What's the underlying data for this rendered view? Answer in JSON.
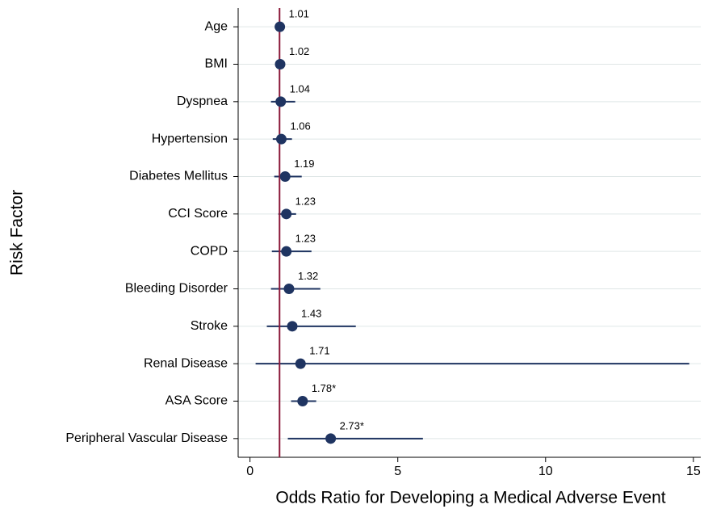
{
  "chart_data": {
    "type": "forest",
    "x_label": "Odds Ratio for Developing a Medical Adverse Event",
    "y_label": "Risk Factor",
    "categories": [
      "Age",
      "BMI",
      "Dyspnea",
      "Hypertension",
      "Diabetes Mellitus",
      "CCI Score",
      "COPD",
      "Bleeding Disorder",
      "Stroke",
      "Renal Disease",
      "ASA Score",
      "Peripheral Vascular Disease"
    ],
    "values": [
      1.01,
      1.02,
      1.04,
      1.06,
      1.19,
      1.23,
      1.23,
      1.32,
      1.43,
      1.71,
      1.78,
      2.73
    ],
    "value_labels": [
      "1.01",
      "1.02",
      "1.04",
      "1.06",
      "1.19",
      "1.23",
      "1.23",
      "1.32",
      "1.43",
      "1.71",
      "1.78*",
      "2.73*"
    ],
    "ci_low": [
      0.99,
      0.98,
      0.71,
      0.77,
      0.82,
      0.96,
      0.74,
      0.71,
      0.57,
      0.19,
      1.39,
      1.28
    ],
    "ci_high": [
      1.03,
      1.06,
      1.53,
      1.42,
      1.75,
      1.56,
      2.08,
      2.38,
      3.58,
      14.86,
      2.24,
      5.85
    ],
    "color": "#1f3461",
    "reference_line": 1,
    "reference_color": "#8b1a3a",
    "xlim": [
      -0.4,
      15.25
    ],
    "xticks": [
      0,
      5,
      10,
      15
    ],
    "grid": true
  }
}
